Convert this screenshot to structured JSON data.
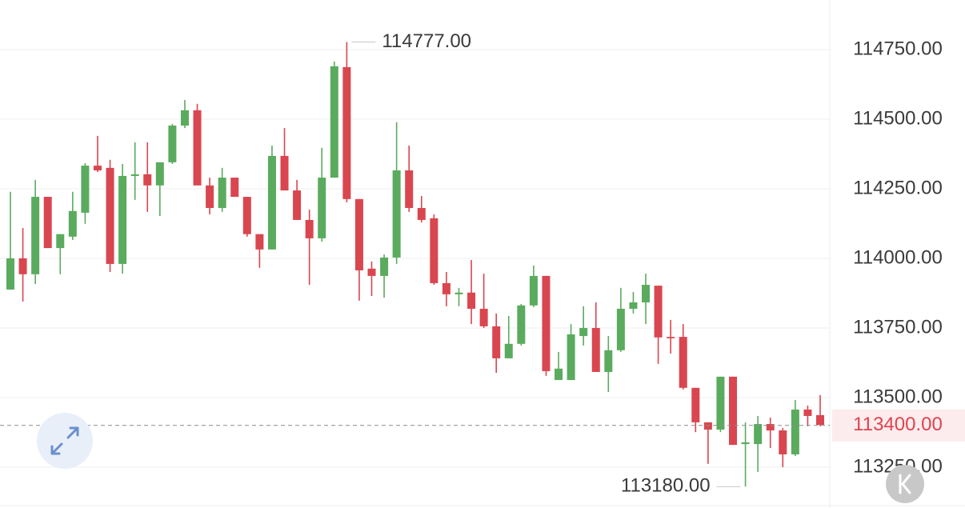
{
  "chart_data": {
    "type": "candlestick",
    "up_color": "#5aab5e",
    "down_color": "#d9464f",
    "grid": true,
    "ylim": [
      113112,
      114928
    ],
    "yticks": [
      {
        "value": 113250,
        "label": "113250.00"
      },
      {
        "value": 113500,
        "label": "113500.00"
      },
      {
        "value": 113750,
        "label": "113750.00"
      },
      {
        "value": 114000,
        "label": "114000.00"
      },
      {
        "value": 114250,
        "label": "114250.00"
      },
      {
        "value": 114500,
        "label": "114500.00"
      },
      {
        "value": 114750,
        "label": "114750.00"
      }
    ],
    "open": [
      113888,
      114000,
      113943,
      114221,
      114037,
      114078,
      114164,
      114333,
      114325,
      113980,
      114296,
      114302,
      114262,
      114345,
      114477,
      114532,
      114262,
      114181,
      114290,
      114221,
      114087,
      114032,
      114368,
      114244,
      114138,
      114072,
      114290,
      114687,
      114213,
      113963,
      113937,
      114003,
      114316,
      114181,
      114144,
      113911,
      113871,
      113877,
      113819,
      113756,
      113641,
      113693,
      113831,
      113937,
      113563,
      113563,
      113721,
      113750,
      113592,
      113670,
      113819,
      113842,
      113902,
      113718,
      113718,
      113535,
      113411,
      113385,
      113575,
      113333,
      113333,
      113405,
      113382,
      113296,
      113457,
      113437
    ],
    "high": [
      114239,
      114109,
      114282,
      114221,
      114087,
      114239,
      114342,
      114440,
      114354,
      114339,
      114417,
      114417,
      114345,
      114483,
      114569,
      114555,
      114290,
      114325,
      114290,
      114221,
      114087,
      114405,
      114468,
      114282,
      114175,
      114397,
      114707,
      114777,
      114213,
      113989,
      114014,
      114489,
      114405,
      114224,
      114158,
      113951,
      113894,
      113994,
      113945,
      113802,
      113793,
      113836,
      113974,
      113937,
      113664,
      113764,
      113828,
      113842,
      113721,
      113894,
      113879,
      113945,
      113902,
      113779,
      113764,
      113535,
      113411,
      113575,
      113575,
      113411,
      113434,
      113428,
      113391,
      113491,
      113471,
      113509
    ],
    "low": [
      113888,
      113845,
      113908,
      114037,
      113943,
      114066,
      114124,
      114310,
      113951,
      113945,
      114210,
      114167,
      114152,
      114339,
      114468,
      114262,
      114158,
      114167,
      114221,
      114078,
      113966,
      114032,
      114244,
      114138,
      113905,
      114060,
      114290,
      114201,
      113848,
      113865,
      113859,
      113980,
      114167,
      114129,
      113905,
      113828,
      113828,
      113764,
      113750,
      113589,
      113641,
      113687,
      113825,
      113578,
      113563,
      113563,
      113687,
      113592,
      113520,
      113664,
      113802,
      113764,
      113621,
      113658,
      113529,
      113376,
      113262,
      113376,
      113330,
      113180,
      113233,
      113319,
      113250,
      113290,
      113397,
      113397
    ],
    "close": [
      114000,
      113943,
      114221,
      114037,
      114087,
      114170,
      114333,
      114316,
      113980,
      114296,
      114302,
      114262,
      114345,
      114477,
      114532,
      114262,
      114181,
      114290,
      114221,
      114087,
      114032,
      114368,
      114244,
      114138,
      114072,
      114290,
      114690,
      114213,
      113957,
      113937,
      114003,
      114316,
      114181,
      114138,
      113911,
      113871,
      113877,
      113819,
      113756,
      113641,
      113693,
      113831,
      113937,
      113595,
      113604,
      113727,
      113750,
      113592,
      113670,
      113819,
      113842,
      113905,
      113716,
      113713,
      113535,
      113411,
      113385,
      113575,
      113330,
      113339,
      113405,
      113382,
      113296,
      113457,
      113434,
      113402
    ],
    "current_price": {
      "value": 113400,
      "label": "113400.00"
    },
    "annotations": [
      {
        "value": 114777,
        "label": "114777.00"
      },
      {
        "value": 113180,
        "label": "113180.00"
      }
    ]
  }
}
